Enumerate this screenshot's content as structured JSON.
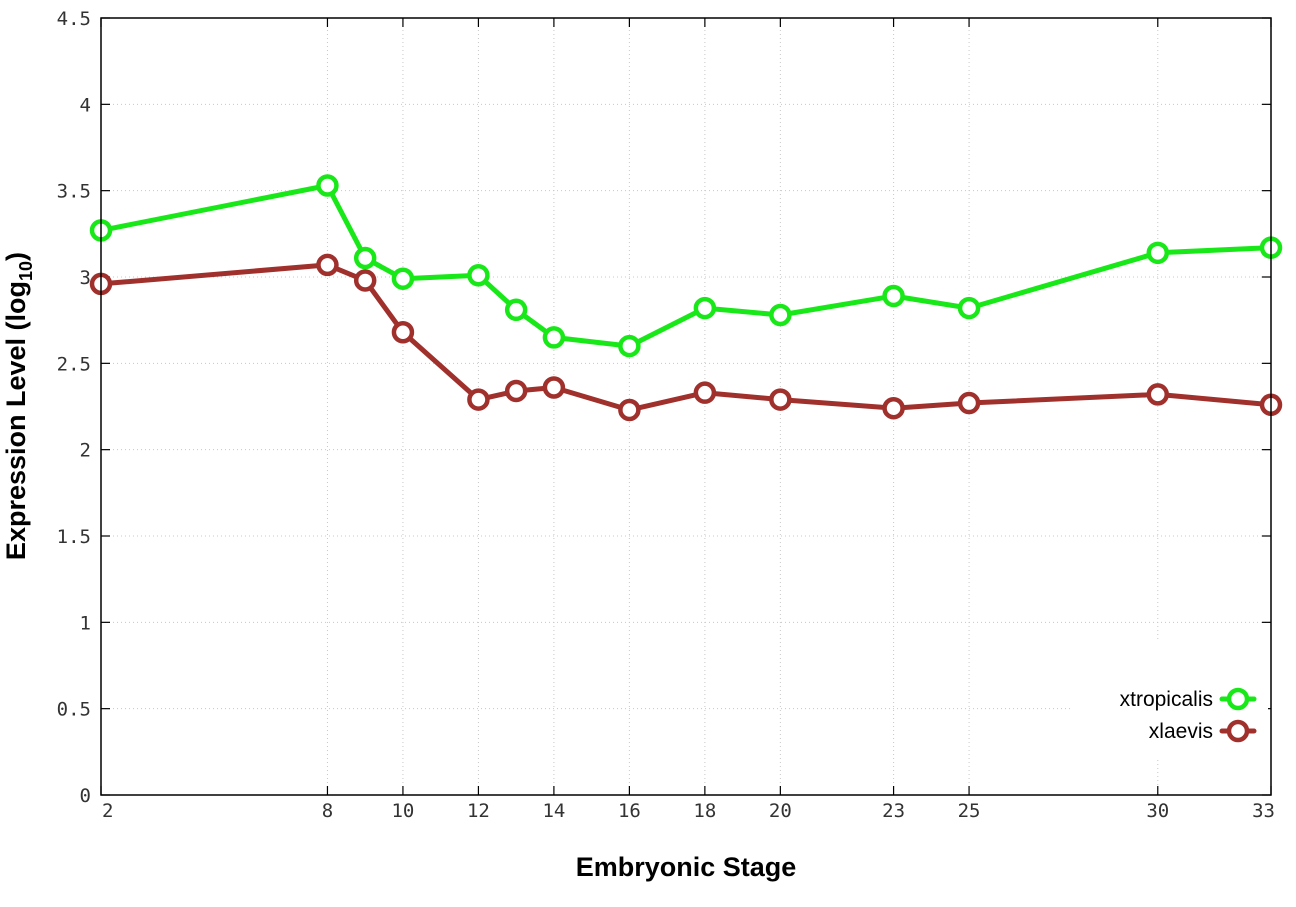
{
  "chart_data": {
    "type": "line",
    "xlabel": "Embryonic Stage",
    "ylabel_main": "Expression Level (log",
    "ylabel_sub": "10",
    "ylabel_close": ")",
    "x": [
      2,
      8,
      9,
      10,
      12,
      13,
      14,
      16,
      18,
      20,
      23,
      25,
      30,
      33
    ],
    "x_ticks": [
      2,
      8,
      10,
      12,
      14,
      16,
      18,
      20,
      23,
      25,
      30,
      33
    ],
    "y_ticks": [
      "0",
      "0.5",
      "1",
      "1.5",
      "2",
      "2.5",
      "3",
      "3.5",
      "4",
      "4.5"
    ],
    "ylim": [
      0,
      4.5
    ],
    "xlim": [
      2,
      33
    ],
    "grid": true,
    "legend_position": "bottom-right",
    "series": [
      {
        "name": "xtropicalis",
        "color": "#18e818",
        "values": [
          3.27,
          3.53,
          3.11,
          2.99,
          3.01,
          2.81,
          2.65,
          2.6,
          2.82,
          2.78,
          2.89,
          2.82,
          3.14,
          3.17
        ]
      },
      {
        "name": "xlaevis",
        "color": "#a0302c",
        "values": [
          2.96,
          3.07,
          2.98,
          2.68,
          2.29,
          2.34,
          2.36,
          2.23,
          2.33,
          2.29,
          2.24,
          2.27,
          2.32,
          2.26
        ]
      }
    ]
  }
}
